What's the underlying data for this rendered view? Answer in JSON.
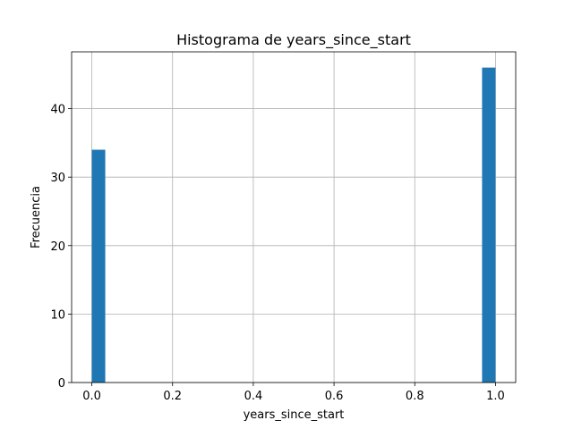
{
  "chart_data": {
    "type": "bar",
    "title": "Histograma de years_since_start",
    "xlabel": "years_since_start",
    "ylabel": "Frecuencia",
    "xlim": [
      -0.05,
      1.05
    ],
    "ylim": [
      0,
      48.3
    ],
    "grid": true,
    "bin_width": 0.0333,
    "bars": [
      {
        "x_start": 0.0,
        "x_end": 0.0333,
        "value": 34
      },
      {
        "x_start": 0.9667,
        "x_end": 1.0,
        "value": 46
      }
    ],
    "xticks": [
      {
        "value": 0.0,
        "label": "0.0"
      },
      {
        "value": 0.2,
        "label": "0.2"
      },
      {
        "value": 0.4,
        "label": "0.4"
      },
      {
        "value": 0.6,
        "label": "0.6"
      },
      {
        "value": 0.8,
        "label": "0.8"
      },
      {
        "value": 1.0,
        "label": "1.0"
      }
    ],
    "yticks": [
      {
        "value": 0,
        "label": "0"
      },
      {
        "value": 10,
        "label": "10"
      },
      {
        "value": 20,
        "label": "20"
      },
      {
        "value": 30,
        "label": "30"
      },
      {
        "value": 40,
        "label": "40"
      }
    ],
    "bar_color": "#1f77b4"
  }
}
